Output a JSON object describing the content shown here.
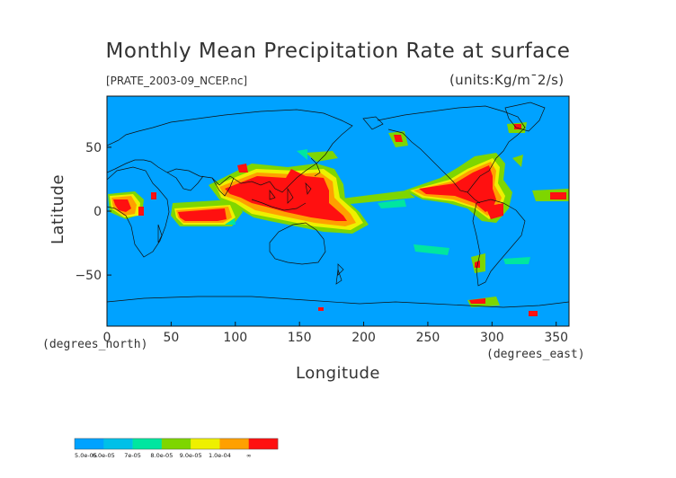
{
  "header": {
    "title": "Monthly Mean Precipitation Rate at surface",
    "file_label": "[PRATE_2003-09_NCEP.nc]",
    "units_label": "(units:Kg/m¯2/s)"
  },
  "axes": {
    "x_title": "Longitude",
    "y_title": "Latitude",
    "x_unit": "(degrees_east)",
    "y_unit": "(degrees_north)",
    "x_range": [
      0,
      360
    ],
    "y_range": [
      -90,
      90
    ],
    "x_ticks": [
      {
        "value": 0,
        "label": "0"
      },
      {
        "value": 50,
        "label": "50"
      },
      {
        "value": 100,
        "label": "100"
      },
      {
        "value": 150,
        "label": "150"
      },
      {
        "value": 200,
        "label": "200"
      },
      {
        "value": 250,
        "label": "250"
      },
      {
        "value": 300,
        "label": "300"
      },
      {
        "value": 350,
        "label": "350"
      }
    ],
    "y_ticks": [
      {
        "value": 50,
        "label": "50"
      },
      {
        "value": 0,
        "label": "0"
      },
      {
        "value": -50,
        "label": "−50"
      }
    ]
  },
  "colorbar": {
    "colors": [
      "#00a2ff",
      "#00c0e8",
      "#00e6a0",
      "#7ed600",
      "#eef000",
      "#ffa000",
      "#ff1010"
    ],
    "labels": [
      "5.0e-05",
      "6.0e-05",
      "7e-05",
      "8.0e-05",
      "9.0e-05",
      "1.0e-04",
      "∞"
    ]
  },
  "map": {
    "background_color": "#00a2ff",
    "coastline_color": "#111111"
  }
}
